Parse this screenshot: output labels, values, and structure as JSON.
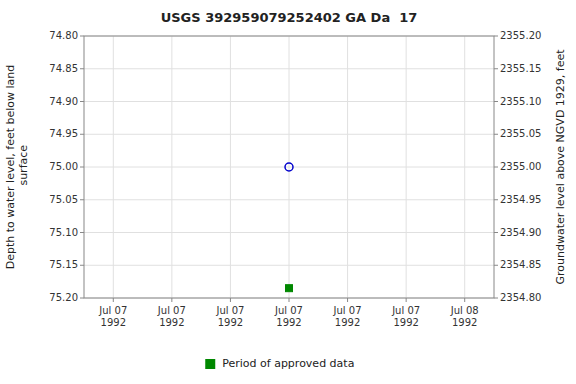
{
  "chart_data": {
    "type": "scatter",
    "title": "USGS 392959079252402 GA Da  17",
    "y_label": "Depth to water level, feet below land\n surface",
    "y2_label": "Groundwater level above NGVD 1929, feet",
    "categories": [
      "Jul 07\n1992",
      "Jul 07\n1992",
      "Jul 07\n1992",
      "Jul 07\n1992",
      "Jul 07\n1992",
      "Jul 07\n1992",
      "Jul 08\n1992"
    ],
    "series": [
      {
        "color": "#0000cc",
        "marker": "circle-open",
        "values": [
          null,
          null,
          null,
          75.0,
          null,
          null,
          null
        ]
      },
      {
        "name": "Period of approved data",
        "color": "#008800",
        "marker": "square",
        "values": [
          null,
          null,
          null,
          75.185,
          null,
          null,
          null
        ]
      }
    ],
    "ylim": [
      75.2,
      74.8
    ],
    "yticks": [
      {
        "value": 74.8,
        "label": "74.80"
      },
      74.85,
      {
        "value": 74.9,
        "label": "74.90"
      },
      74.95,
      {
        "value": 75.0,
        "label": "75.00"
      },
      75.05,
      {
        "value": 75.1,
        "label": "75.10"
      },
      75.15,
      {
        "value": 75.2,
        "label": "75.20"
      }
    ],
    "y2lim": [
      2354.8,
      2355.2
    ],
    "y2ticks": [
      {
        "value": 2354.8,
        "label": "2354.80"
      },
      2354.85,
      {
        "value": 2354.9,
        "label": "2354.90"
      },
      2354.95,
      {
        "value": 2355.0,
        "label": "2355.00"
      },
      2355.05,
      {
        "value": 2355.1,
        "label": "2355.10"
      },
      2355.15,
      {
        "value": 2355.2,
        "label": "2355.20"
      }
    ],
    "grid": true,
    "legend": "bottom"
  }
}
